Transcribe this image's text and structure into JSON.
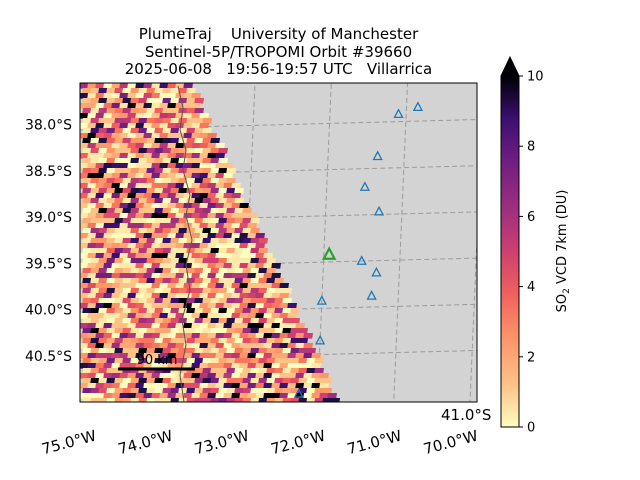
{
  "title": {
    "line1": "PlumeTraj    University of Manchester",
    "line2": "Sentinel-5P/TROPOMI Orbit #39660",
    "line3": "2025-06-08   19:56-19:57 UTC   Villarrica"
  },
  "chart_data": {
    "type": "heatmap",
    "projection": "map",
    "x_tick_labels": [
      "75.0°W",
      "74.0°W",
      "73.0°W",
      "72.0°W",
      "71.0°W",
      "70.0°W"
    ],
    "x_ticks_lon": [
      -75.0,
      -74.0,
      -73.0,
      -72.0,
      -71.0,
      -70.0
    ],
    "right_edge_label": "41.0°S",
    "y_tick_labels": [
      "38.0°S",
      "38.5°S",
      "39.0°S",
      "39.5°S",
      "40.0°S",
      "40.5°S"
    ],
    "y_ticks_lat": [
      -38.0,
      -38.5,
      -39.0,
      -39.5,
      -40.0,
      -40.5
    ],
    "lon_range": [
      -75.2,
      -70.0
    ],
    "lat_range": [
      -41.0,
      -37.55
    ],
    "grid": true,
    "colorbar": {
      "label_prefix": "SO",
      "label_sub": "2",
      "label_suffix": " VCD 7km (DU)",
      "min": 0,
      "max": 10,
      "ticks": [
        "0",
        "2",
        "4",
        "6",
        "8",
        "10"
      ],
      "extend": "max",
      "colormap": "magma_r"
    },
    "scale_bar": {
      "label": "90 km"
    },
    "target_volcano": {
      "name": "Villarrica",
      "lon": -71.93,
      "lat": -39.42,
      "color": "#2ca02c"
    },
    "other_volcanoes": [
      {
        "lon": -71.1,
        "lat": -37.92
      },
      {
        "lon": -70.85,
        "lat": -37.85
      },
      {
        "lon": -71.35,
        "lat": -38.37
      },
      {
        "lon": -71.5,
        "lat": -38.7
      },
      {
        "lon": -71.3,
        "lat": -38.97
      },
      {
        "lon": -71.5,
        "lat": -39.5
      },
      {
        "lon": -71.3,
        "lat": -39.63
      },
      {
        "lon": -71.35,
        "lat": -39.88
      },
      {
        "lon": -72.0,
        "lat": -39.92
      },
      {
        "lon": -72.0,
        "lat": -40.35
      },
      {
        "lon": -72.25,
        "lat": -40.92
      }
    ],
    "colors": {
      "ocean_land_background": "#d3d3d3",
      "gridline": "#9a9a9a",
      "volcano_marker": "#1f77b4",
      "coastline": "#555555"
    }
  }
}
